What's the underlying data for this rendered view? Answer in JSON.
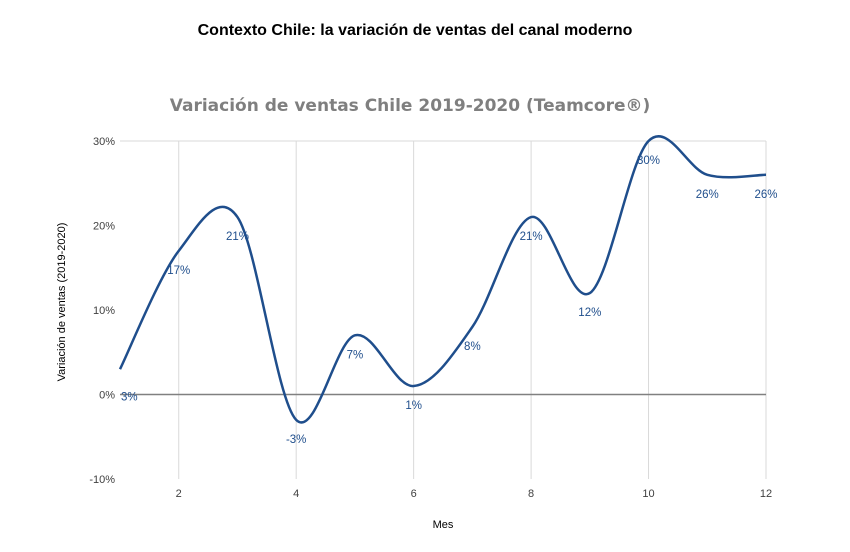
{
  "slide": {
    "title": "Contexto Chile: la variación de ventas del canal moderno"
  },
  "chart_data": {
    "type": "line",
    "title": "Variación de ventas Chile 2019-2020 (Teamcore®)",
    "xlabel": "Mes",
    "ylabel": "Variación de ventas (2019-2020)",
    "x": [
      1,
      2,
      3,
      4,
      5,
      6,
      7,
      8,
      9,
      10,
      11,
      12
    ],
    "xticks": [
      2,
      4,
      6,
      8,
      10,
      12
    ],
    "xlim": [
      1,
      12
    ],
    "ylim": [
      -10,
      30
    ],
    "yticks": [
      -10,
      0,
      10,
      20,
      30
    ],
    "ytick_labels": [
      "-10%",
      "0%",
      "10%",
      "20%",
      "30%"
    ],
    "smooth": true,
    "grid": "vertical",
    "series": [
      {
        "values": [
          3,
          17,
          21,
          -3,
          7,
          1,
          8,
          21,
          12,
          30,
          26,
          26
        ],
        "labels": [
          "3%",
          "17%",
          "21%",
          "-3%",
          "7%",
          "1%",
          "8%",
          "21%",
          "12%",
          "30%",
          "26%",
          "26%"
        ],
        "color": "#1f4e8c"
      }
    ],
    "zero_line_color": "#808080"
  }
}
